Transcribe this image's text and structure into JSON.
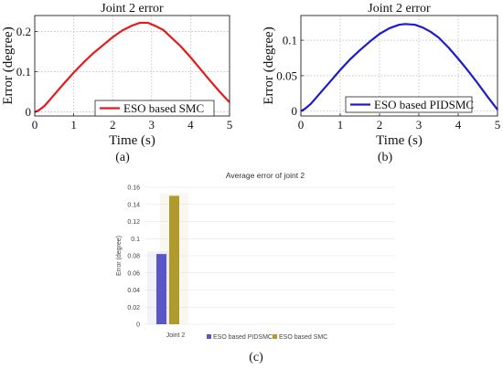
{
  "panels": {
    "a": "(a)",
    "b": "(b)",
    "c": "(c)"
  },
  "chart_data": [
    {
      "type": "line",
      "title": "Joint 2 error",
      "xlabel": "Time (s)",
      "ylabel": "Error (degree)",
      "xlim": [
        0,
        5
      ],
      "ylim": [
        -0.01,
        0.24
      ],
      "x_ticks": [
        0,
        1,
        2,
        3,
        4,
        5
      ],
      "y_ticks": [
        0,
        0.1,
        0.2
      ],
      "grid": true,
      "legend_position": "bottom-right",
      "series": [
        {
          "name": "ESO based SMC",
          "color": "#e8191c",
          "x": [
            0,
            0.1,
            0.25,
            0.5,
            0.75,
            1.0,
            1.25,
            1.5,
            1.75,
            2.0,
            2.25,
            2.5,
            2.7,
            2.9,
            3.1,
            3.3,
            3.5,
            3.75,
            4.0,
            4.25,
            4.5,
            4.75,
            5.0
          ],
          "y": [
            0,
            0.004,
            0.015,
            0.043,
            0.071,
            0.098,
            0.123,
            0.146,
            0.166,
            0.186,
            0.203,
            0.215,
            0.222,
            0.222,
            0.214,
            0.204,
            0.186,
            0.163,
            0.136,
            0.107,
            0.078,
            0.05,
            0.024
          ]
        }
      ]
    },
    {
      "type": "line",
      "title": "Joint 2 error",
      "xlabel": "Time (s)",
      "ylabel": "Error (degree)",
      "xlim": [
        0,
        5
      ],
      "ylim": [
        -0.007,
        0.135
      ],
      "x_ticks": [
        0,
        1,
        2,
        3,
        4,
        5
      ],
      "y_ticks": [
        0,
        0.05,
        0.1
      ],
      "grid": true,
      "legend_position": "bottom-right",
      "series": [
        {
          "name": "ESO based PIDSMC",
          "color": "#1c1ccf",
          "x": [
            0,
            0.1,
            0.25,
            0.5,
            0.75,
            1.0,
            1.25,
            1.5,
            1.75,
            2.0,
            2.25,
            2.5,
            2.65,
            2.9,
            3.1,
            3.3,
            3.5,
            3.75,
            4.0,
            4.25,
            4.5,
            4.75,
            5.0
          ],
          "y": [
            0,
            0.003,
            0.01,
            0.026,
            0.042,
            0.058,
            0.073,
            0.086,
            0.098,
            0.109,
            0.117,
            0.122,
            0.123,
            0.122,
            0.118,
            0.112,
            0.104,
            0.09,
            0.074,
            0.057,
            0.039,
            0.02,
            0.002
          ]
        }
      ]
    },
    {
      "type": "bar",
      "title": "Average error of joint 2",
      "xlabel": "",
      "ylabel": "Error (degree)",
      "categories": [
        "Joint 2"
      ],
      "ylim": [
        0,
        0.16
      ],
      "y_ticks": [
        0,
        0.02,
        0.04,
        0.06,
        0.08,
        0.1,
        0.12,
        0.14,
        0.16
      ],
      "grid": true,
      "legend_position": "bottom",
      "series": [
        {
          "name": "ESO based PIDSMC",
          "color": "#5a56c8",
          "values": [
            0.082
          ]
        },
        {
          "name": "ESO based SMC",
          "color": "#b09a2e",
          "values": [
            0.15
          ]
        }
      ]
    }
  ]
}
